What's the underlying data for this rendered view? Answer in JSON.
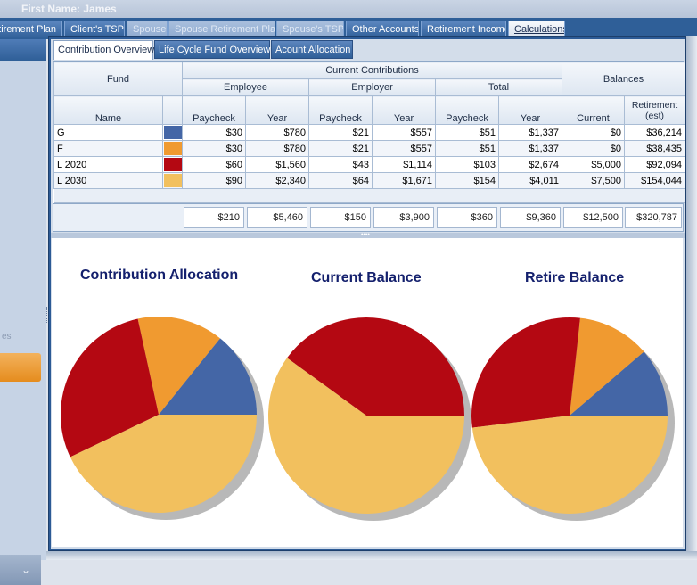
{
  "window": {
    "title": "First Name: James"
  },
  "top_tabs": [
    {
      "label": "Retirement Plan",
      "state": "normal"
    },
    {
      "label": "Client's TSP",
      "state": "normal"
    },
    {
      "label": "Spouse",
      "state": "disabled"
    },
    {
      "label": "Spouse Retirement Plan",
      "state": "disabled"
    },
    {
      "label": "Spouse's TSP",
      "state": "disabled"
    },
    {
      "label": "Other Accounts",
      "state": "normal"
    },
    {
      "label": "Retirement Income",
      "state": "normal"
    },
    {
      "label": "Calculations",
      "state": "selected"
    }
  ],
  "sub_tabs": [
    {
      "label": "Contribution Overview",
      "selected": true
    },
    {
      "label": "Life Cycle Fund Overview",
      "selected": false
    },
    {
      "label": "Acount Allocation",
      "selected": false
    }
  ],
  "left_panel": {
    "partial_label": "es"
  },
  "grid": {
    "headers": {
      "fund": "Fund",
      "current_contributions": "Current Contributions",
      "balances": "Balances",
      "employee": "Employee",
      "employer": "Employer",
      "total": "Total",
      "name": "Name",
      "paycheck": "Paycheck",
      "year": "Year",
      "current": "Current",
      "retirement": "Retirement (est)"
    },
    "rows": [
      {
        "name": "G",
        "color": "#4466a6",
        "emp_paycheck": "$30",
        "emp_year": "$780",
        "er_paycheck": "$21",
        "er_year": "$557",
        "tot_paycheck": "$51",
        "tot_year": "$1,337",
        "bal_current": "$0",
        "bal_retire": "$36,214"
      },
      {
        "name": "F",
        "color": "#f09a30",
        "emp_paycheck": "$30",
        "emp_year": "$780",
        "er_paycheck": "$21",
        "er_year": "$557",
        "tot_paycheck": "$51",
        "tot_year": "$1,337",
        "bal_current": "$0",
        "bal_retire": "$38,435"
      },
      {
        "name": "L 2020",
        "color": "#b40812",
        "emp_paycheck": "$60",
        "emp_year": "$1,560",
        "er_paycheck": "$43",
        "er_year": "$1,114",
        "tot_paycheck": "$103",
        "tot_year": "$2,674",
        "bal_current": "$5,000",
        "bal_retire": "$92,094"
      },
      {
        "name": "L 2030",
        "color": "#f2c05e",
        "emp_paycheck": "$90",
        "emp_year": "$2,340",
        "er_paycheck": "$64",
        "er_year": "$1,671",
        "tot_paycheck": "$154",
        "tot_year": "$4,011",
        "bal_current": "$7,500",
        "bal_retire": "$154,044"
      }
    ],
    "totals": {
      "emp_paycheck": "$210",
      "emp_year": "$5,460",
      "er_paycheck": "$150",
      "er_year": "$3,900",
      "tot_paycheck": "$360",
      "tot_year": "$9,360",
      "bal_current": "$12,500",
      "bal_retire": "$320,787"
    }
  },
  "chart_data": [
    {
      "type": "pie",
      "title": "Contribution Allocation",
      "categories": [
        "G",
        "F",
        "L 2020",
        "L 2030"
      ],
      "values": [
        510,
        510,
        1030,
        1540
      ],
      "colors": [
        "#4466a6",
        "#f09a30",
        "#b40812",
        "#f2c05e"
      ]
    },
    {
      "type": "pie",
      "title": "Current Balance",
      "categories": [
        "G",
        "F",
        "L 2020",
        "L 2030"
      ],
      "values": [
        0,
        0,
        5000,
        7500
      ],
      "colors": [
        "#4466a6",
        "#f09a30",
        "#b40812",
        "#f2c05e"
      ]
    },
    {
      "type": "pie",
      "title": "Retire Balance",
      "categories": [
        "G",
        "F",
        "L 2020",
        "L 2030"
      ],
      "values": [
        36214,
        38435,
        92094,
        154044
      ],
      "colors": [
        "#4466a6",
        "#f09a30",
        "#b40812",
        "#f2c05e"
      ]
    }
  ]
}
